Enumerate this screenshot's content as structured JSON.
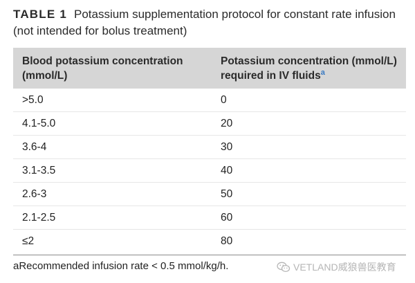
{
  "caption": {
    "label": "TABLE 1",
    "text": "Potassium supplementation protocol for constant rate infusion (not intended for bolus treatment)"
  },
  "table": {
    "headers": [
      "Blood potassium concentration (mmol/L)",
      "Potassium concentration (mmol/L) required in IV fluids"
    ],
    "header_marker": "a",
    "rows": [
      [
        ">5.0",
        "0"
      ],
      [
        "4.1-5.0",
        "20"
      ],
      [
        "3.6-4",
        "30"
      ],
      [
        "3.1-3.5",
        "40"
      ],
      [
        "2.6-3",
        "50"
      ],
      [
        "2.1-2.5",
        "60"
      ],
      [
        "≤2",
        "80"
      ]
    ]
  },
  "footnote": "aRecommended infusion rate < 0.5 mmol/kg/h.",
  "watermark": {
    "icon": "wechat-icon",
    "text": "VETLAND威狼兽医教育"
  }
}
